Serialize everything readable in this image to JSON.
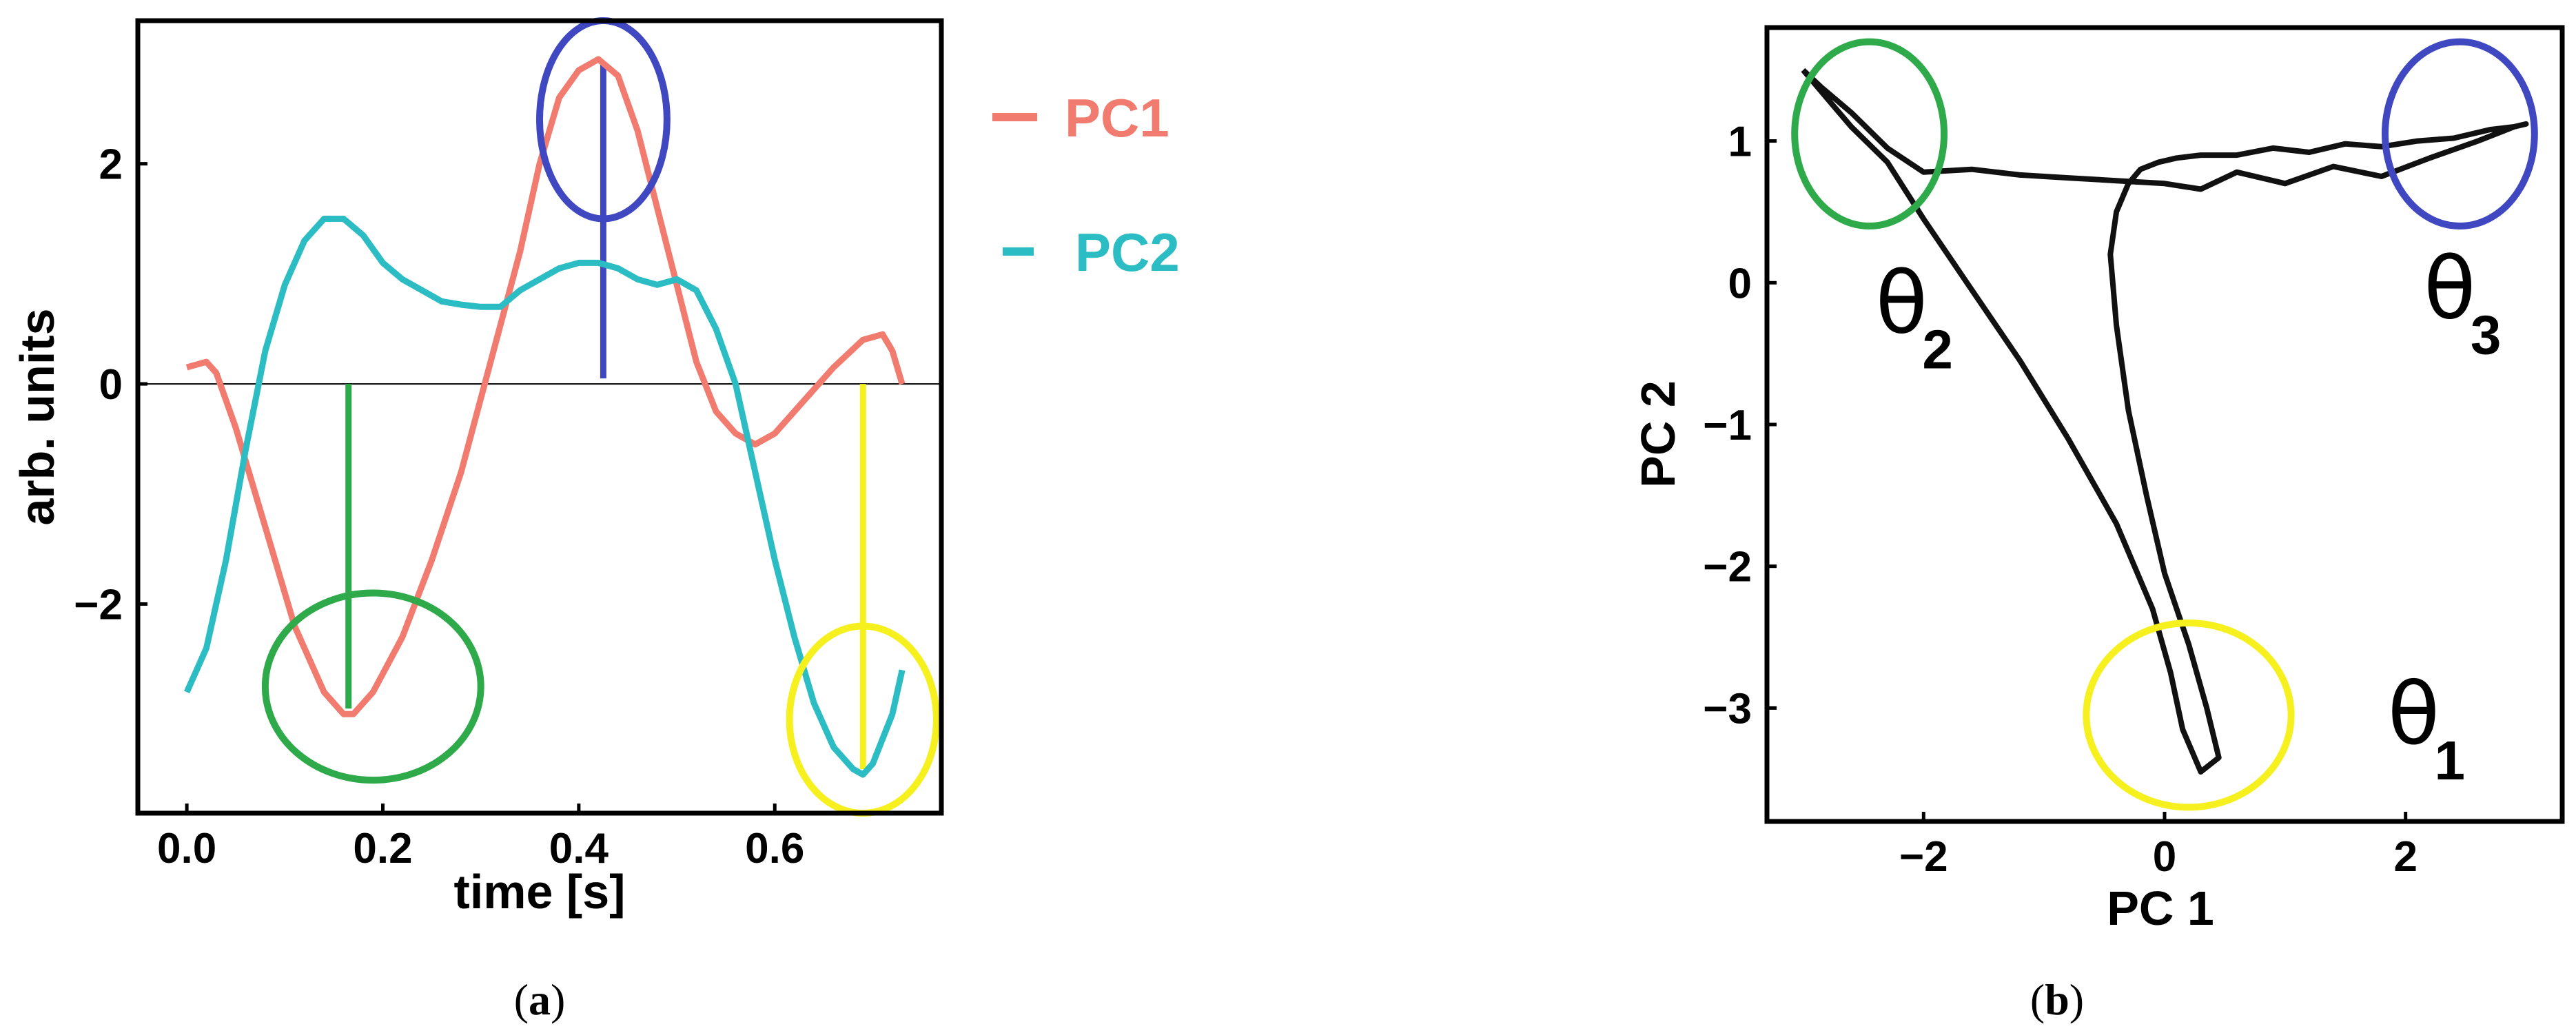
{
  "chart_data": [
    {
      "type": "line",
      "caption_letter": "a",
      "xlabel": "time [s]",
      "ylabel": "arb. units",
      "xlim": [
        -0.05,
        0.77
      ],
      "ylim": [
        -3.9,
        3.3
      ],
      "xticks": [
        "0.0",
        "0.2",
        "0.4",
        "0.6"
      ],
      "yticks": [
        "−2",
        "0",
        "2"
      ],
      "series": [
        {
          "name": "PC1",
          "color": "#f07b6e",
          "x": [
            0.0,
            0.02,
            0.03,
            0.05,
            0.08,
            0.11,
            0.14,
            0.16,
            0.17,
            0.19,
            0.22,
            0.25,
            0.28,
            0.31,
            0.34,
            0.36,
            0.38,
            0.4,
            0.42,
            0.44,
            0.46,
            0.48,
            0.5,
            0.52,
            0.54,
            0.56,
            0.58,
            0.6,
            0.63,
            0.66,
            0.69,
            0.71,
            0.72,
            0.73
          ],
          "y": [
            0.15,
            0.2,
            0.1,
            -0.4,
            -1.3,
            -2.2,
            -2.8,
            -3.0,
            -3.0,
            -2.8,
            -2.3,
            -1.6,
            -0.8,
            0.2,
            1.2,
            2.0,
            2.6,
            2.85,
            2.95,
            2.8,
            2.3,
            1.6,
            0.9,
            0.2,
            -0.25,
            -0.45,
            -0.55,
            -0.45,
            -0.15,
            0.15,
            0.4,
            0.45,
            0.3,
            0.0
          ]
        },
        {
          "name": "PC2",
          "color": "#2bbdc3",
          "x": [
            0.0,
            0.01,
            0.02,
            0.04,
            0.06,
            0.08,
            0.1,
            0.12,
            0.14,
            0.16,
            0.18,
            0.2,
            0.22,
            0.24,
            0.26,
            0.28,
            0.3,
            0.32,
            0.34,
            0.36,
            0.38,
            0.4,
            0.42,
            0.44,
            0.46,
            0.48,
            0.5,
            0.52,
            0.54,
            0.56,
            0.58,
            0.6,
            0.62,
            0.64,
            0.66,
            0.68,
            0.69,
            0.7,
            0.72,
            0.73
          ],
          "y": [
            -2.8,
            -2.6,
            -2.4,
            -1.6,
            -0.6,
            0.3,
            0.9,
            1.3,
            1.5,
            1.5,
            1.35,
            1.1,
            0.95,
            0.85,
            0.75,
            0.72,
            0.7,
            0.7,
            0.85,
            0.95,
            1.05,
            1.1,
            1.1,
            1.05,
            0.95,
            0.9,
            0.95,
            0.85,
            0.5,
            0.0,
            -0.8,
            -1.6,
            -2.3,
            -2.9,
            -3.3,
            -3.5,
            -3.55,
            -3.45,
            -3.0,
            -2.6
          ]
        }
      ],
      "markers": [
        {
          "color": "#3f48c0",
          "x": 0.425,
          "y_from": 0.05,
          "y_to": 2.9,
          "circle_cx": 0.425,
          "circle_cy": 2.4,
          "circle_rx": 0.065,
          "circle_ry": 0.9
        },
        {
          "color": "#2eaa4a",
          "x": 0.165,
          "y_from": 0.0,
          "y_to": -2.95,
          "circle_cx": 0.19,
          "circle_cy": -2.75,
          "circle_rx": 0.11,
          "circle_ry": 0.85
        },
        {
          "color": "#f5f01e",
          "x": 0.69,
          "y_from": 0.0,
          "y_to": -3.5,
          "circle_cx": 0.69,
          "circle_cy": -3.05,
          "circle_rx": 0.075,
          "circle_ry": 0.85
        }
      ]
    },
    {
      "type": "line",
      "caption_letter": "b",
      "xlabel": "PC 1",
      "ylabel": "PC 2",
      "xlim": [
        -3.3,
        3.3
      ],
      "ylim": [
        -3.8,
        1.8
      ],
      "xticks": [
        "−2",
        "0",
        "2"
      ],
      "yticks": [
        "−3",
        "−2",
        "−1",
        "0",
        "1"
      ],
      "series": [
        {
          "color": "#111111",
          "x": [
            -3.0,
            -2.8,
            -2.6,
            -2.3,
            -2.0,
            -1.6,
            -1.2,
            -0.8,
            -0.4,
            -0.1,
            0.05,
            0.15,
            0.3,
            0.45,
            0.35,
            0.2,
            0.0,
            -0.15,
            -0.3,
            -0.4,
            -0.45,
            -0.4,
            -0.3,
            -0.25,
            -0.2,
            -0.05,
            0.1,
            0.3,
            0.6,
            0.9,
            1.2,
            1.5,
            1.8,
            2.1,
            2.4,
            2.7,
            2.9,
            3.0,
            2.9,
            2.6,
            2.2,
            1.8,
            1.4,
            1.0,
            0.6,
            0.3,
            0.0,
            -0.4,
            -0.8,
            -1.2,
            -1.6,
            -2.0,
            -2.3,
            -2.6,
            -2.85,
            -3.0
          ],
          "y": [
            1.5,
            1.3,
            1.1,
            0.85,
            0.45,
            -0.05,
            -0.55,
            -1.1,
            -1.7,
            -2.3,
            -2.75,
            -3.15,
            -3.45,
            -3.35,
            -3.0,
            -2.55,
            -2.05,
            -1.5,
            -0.9,
            -0.3,
            0.2,
            0.5,
            0.7,
            0.75,
            0.8,
            0.85,
            0.88,
            0.9,
            0.9,
            0.95,
            0.92,
            0.98,
            0.96,
            1.0,
            1.02,
            1.08,
            1.1,
            1.12,
            1.1,
            1.0,
            0.88,
            0.75,
            0.82,
            0.7,
            0.78,
            0.66,
            0.7,
            0.72,
            0.74,
            0.76,
            0.8,
            0.78,
            0.95,
            1.2,
            1.38,
            1.5
          ]
        }
      ],
      "markers": [
        {
          "color": "#2eaa4a",
          "circle_cx": -2.45,
          "circle_cy": 1.05,
          "circle_rx": 0.62,
          "circle_ry": 0.65
        },
        {
          "color": "#3f48c0",
          "circle_cx": 2.45,
          "circle_cy": 1.05,
          "circle_rx": 0.62,
          "circle_ry": 0.65
        },
        {
          "color": "#f5f01e",
          "circle_cx": 0.2,
          "circle_cy": -3.05,
          "circle_rx": 0.85,
          "circle_ry": 0.65
        }
      ],
      "annotations": [
        {
          "symbol": "θ",
          "subscript": "2",
          "x": -2.4,
          "y": -0.35
        },
        {
          "symbol": "θ",
          "subscript": "3",
          "x": 2.15,
          "y": -0.25
        },
        {
          "symbol": "θ",
          "subscript": "1",
          "x": 1.85,
          "y": -3.25
        }
      ]
    }
  ]
}
